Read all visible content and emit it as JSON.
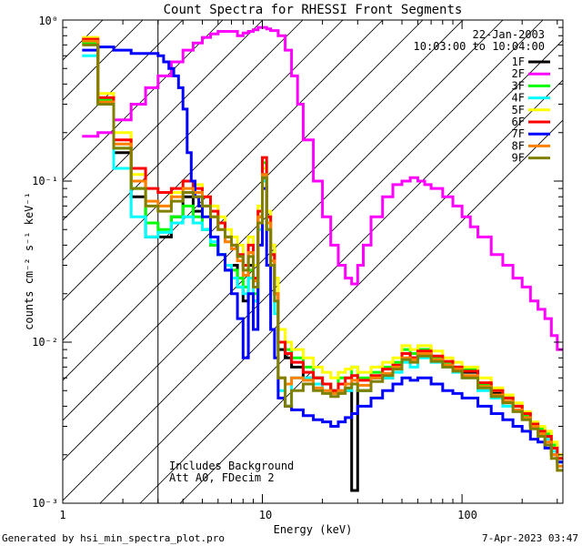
{
  "chart_data": {
    "type": "line",
    "title": "Count Spectra for RHESSI Front Segments",
    "xlabel": "Energy (keV)",
    "ylabel": "counts cm⁻² s⁻¹ keV⁻¹",
    "xscale": "log",
    "yscale": "log",
    "xlim": [
      1,
      320
    ],
    "ylim": [
      0.001,
      1.0
    ],
    "x_ticks": [
      "1",
      "10",
      "100"
    ],
    "y_ticks": [
      "10⁻³",
      "10⁻²",
      "10⁻¹",
      "10⁰"
    ],
    "legend_position": "top-right",
    "annotations": {
      "date": "22-Jan-2003",
      "time_range": "10:03:00 to 10:04:00",
      "background_note": "Includes Background",
      "attenuator_note": "Att A0, FDecim 2",
      "excluded_region": [
        1,
        3
      ],
      "footer_left": "Generated by hsi_min_spectra_plot.pro",
      "footer_right": "7-Apr-2023 03:47"
    },
    "series": [
      {
        "name": "1F",
        "color": "#000000",
        "x": [
          1.25,
          1.5,
          1.8,
          2.2,
          2.6,
          3.0,
          3.5,
          4,
          4.5,
          5,
          5.5,
          6,
          6.5,
          7,
          7.5,
          8,
          8.5,
          9,
          9.5,
          10,
          10.5,
          11,
          11.5,
          12,
          13,
          14,
          16,
          18,
          20,
          22,
          24,
          26,
          28,
          30,
          35,
          40,
          45,
          50,
          55,
          60,
          70,
          80,
          90,
          100,
          120,
          140,
          160,
          180,
          200,
          220,
          240,
          260,
          280,
          300
        ],
        "y": [
          0.75,
          0.3,
          0.15,
          0.08,
          0.045,
          0.045,
          0.06,
          0.08,
          0.065,
          0.05,
          0.04,
          0.035,
          0.028,
          0.03,
          0.022,
          0.018,
          0.03,
          0.018,
          0.06,
          0.11,
          0.06,
          0.04,
          0.02,
          0.009,
          0.008,
          0.007,
          0.006,
          0.006,
          0.0055,
          0.005,
          0.005,
          0.005,
          0.0012,
          0.005,
          0.006,
          0.006,
          0.007,
          0.0085,
          0.008,
          0.009,
          0.008,
          0.0075,
          0.007,
          0.0065,
          0.0055,
          0.0048,
          0.0045,
          0.004,
          0.0035,
          0.003,
          0.0028,
          0.0026,
          0.0022,
          0.002
        ]
      },
      {
        "name": "2F",
        "color": "#ff00ff",
        "x": [
          1.25,
          1.5,
          1.8,
          2.2,
          2.6,
          3.0,
          3.5,
          4,
          4.5,
          5,
          5.5,
          6,
          6.5,
          7,
          7.5,
          8,
          8.5,
          9,
          9.5,
          10,
          10.5,
          11,
          12,
          13,
          14,
          15,
          16,
          18,
          20,
          22,
          24,
          26,
          28,
          30,
          32,
          35,
          40,
          45,
          50,
          55,
          60,
          65,
          70,
          80,
          90,
          100,
          110,
          120,
          140,
          160,
          180,
          200,
          220,
          240,
          260,
          280,
          300
        ],
        "y": [
          0.19,
          0.2,
          0.24,
          0.3,
          0.38,
          0.45,
          0.55,
          0.65,
          0.72,
          0.78,
          0.82,
          0.85,
          0.85,
          0.85,
          0.8,
          0.83,
          0.85,
          0.87,
          0.9,
          0.9,
          0.88,
          0.86,
          0.8,
          0.65,
          0.45,
          0.3,
          0.18,
          0.1,
          0.06,
          0.04,
          0.03,
          0.025,
          0.023,
          0.03,
          0.04,
          0.06,
          0.08,
          0.095,
          0.1,
          0.105,
          0.1,
          0.095,
          0.09,
          0.08,
          0.07,
          0.06,
          0.052,
          0.045,
          0.035,
          0.03,
          0.025,
          0.022,
          0.018,
          0.016,
          0.014,
          0.011,
          0.009
        ]
      },
      {
        "name": "3F",
        "color": "#00ff00",
        "x": [
          1.25,
          1.5,
          1.8,
          2.2,
          2.6,
          3.0,
          3.5,
          4,
          4.5,
          5,
          5.5,
          6,
          6.5,
          7,
          7.5,
          8,
          8.5,
          9,
          9.5,
          10,
          10.5,
          11,
          11.5,
          12,
          13,
          14,
          16,
          18,
          20,
          22,
          24,
          26,
          28,
          30,
          35,
          40,
          45,
          50,
          55,
          60,
          70,
          80,
          90,
          100,
          120,
          140,
          160,
          180,
          200,
          220,
          240,
          260,
          280,
          300
        ],
        "y": [
          0.72,
          0.32,
          0.16,
          0.09,
          0.055,
          0.05,
          0.06,
          0.07,
          0.06,
          0.05,
          0.04,
          0.035,
          0.03,
          0.028,
          0.025,
          0.022,
          0.028,
          0.02,
          0.06,
          0.13,
          0.05,
          0.03,
          0.018,
          0.01,
          0.009,
          0.008,
          0.007,
          0.006,
          0.0055,
          0.005,
          0.006,
          0.006,
          0.007,
          0.006,
          0.0065,
          0.007,
          0.0075,
          0.009,
          0.0085,
          0.009,
          0.008,
          0.0075,
          0.007,
          0.0068,
          0.0055,
          0.005,
          0.0045,
          0.004,
          0.0035,
          0.003,
          0.0029,
          0.0027,
          0.0023,
          0.0019
        ]
      },
      {
        "name": "4F",
        "color": "#00ffff",
        "x": [
          1.25,
          1.5,
          1.8,
          2.2,
          2.6,
          3.0,
          3.5,
          4,
          4.5,
          5,
          5.5,
          6,
          6.5,
          7,
          7.5,
          8,
          8.5,
          9,
          9.5,
          10,
          10.5,
          11,
          11.5,
          12,
          13,
          14,
          16,
          18,
          20,
          22,
          24,
          26,
          28,
          30,
          35,
          40,
          45,
          50,
          55,
          60,
          70,
          80,
          90,
          100,
          120,
          140,
          160,
          180,
          200,
          220,
          240,
          260,
          280,
          300
        ],
        "y": [
          0.6,
          0.3,
          0.12,
          0.06,
          0.045,
          0.048,
          0.055,
          0.06,
          0.055,
          0.05,
          0.042,
          0.035,
          0.03,
          0.025,
          0.022,
          0.02,
          0.025,
          0.018,
          0.05,
          0.1,
          0.05,
          0.03,
          0.015,
          0.005,
          0.004,
          0.006,
          0.006,
          0.0055,
          0.005,
          0.0048,
          0.005,
          0.005,
          0.0055,
          0.005,
          0.006,
          0.006,
          0.0065,
          0.0075,
          0.007,
          0.008,
          0.0075,
          0.007,
          0.0065,
          0.006,
          0.005,
          0.0045,
          0.004,
          0.0038,
          0.0034,
          0.003,
          0.0028,
          0.0025,
          0.0021,
          0.0018
        ]
      },
      {
        "name": "5F",
        "color": "#ffff00",
        "x": [
          1.25,
          1.5,
          1.8,
          2.2,
          2.6,
          3.0,
          3.5,
          4,
          4.5,
          5,
          5.5,
          6,
          6.5,
          7,
          7.5,
          8,
          8.5,
          9,
          9.5,
          10,
          10.5,
          11,
          11.5,
          12,
          13,
          14,
          16,
          18,
          20,
          22,
          24,
          26,
          28,
          30,
          35,
          40,
          45,
          50,
          55,
          60,
          70,
          80,
          90,
          100,
          120,
          140,
          160,
          180,
          200,
          220,
          240,
          260,
          280,
          300
        ],
        "y": [
          0.78,
          0.35,
          0.2,
          0.11,
          0.07,
          0.07,
          0.085,
          0.1,
          0.095,
          0.08,
          0.07,
          0.06,
          0.05,
          0.045,
          0.04,
          0.03,
          0.045,
          0.03,
          0.07,
          0.12,
          0.065,
          0.04,
          0.025,
          0.012,
          0.01,
          0.009,
          0.008,
          0.007,
          0.0065,
          0.006,
          0.0065,
          0.0068,
          0.007,
          0.0065,
          0.007,
          0.0075,
          0.008,
          0.0095,
          0.009,
          0.0095,
          0.0088,
          0.008,
          0.0075,
          0.007,
          0.006,
          0.0052,
          0.0047,
          0.0042,
          0.0037,
          0.0032,
          0.003,
          0.0028,
          0.0024,
          0.002
        ]
      },
      {
        "name": "6F",
        "color": "#ff0000",
        "x": [
          1.25,
          1.5,
          1.8,
          2.2,
          2.6,
          3.0,
          3.5,
          4,
          4.5,
          5,
          5.5,
          6,
          6.5,
          7,
          7.5,
          8,
          8.5,
          9,
          9.5,
          10,
          10.5,
          11,
          11.5,
          12,
          13,
          14,
          16,
          18,
          20,
          22,
          24,
          26,
          28,
          30,
          35,
          40,
          45,
          50,
          55,
          60,
          70,
          80,
          90,
          100,
          120,
          140,
          160,
          180,
          200,
          220,
          240,
          260,
          280,
          300
        ],
        "y": [
          0.76,
          0.33,
          0.18,
          0.12,
          0.09,
          0.085,
          0.09,
          0.1,
          0.09,
          0.08,
          0.065,
          0.055,
          0.045,
          0.04,
          0.035,
          0.03,
          0.04,
          0.025,
          0.065,
          0.14,
          0.06,
          0.035,
          0.02,
          0.01,
          0.0085,
          0.0075,
          0.0065,
          0.006,
          0.0055,
          0.005,
          0.0055,
          0.006,
          0.0062,
          0.0058,
          0.0062,
          0.0068,
          0.0072,
          0.0085,
          0.008,
          0.0088,
          0.0082,
          0.0076,
          0.007,
          0.0066,
          0.0056,
          0.005,
          0.0045,
          0.004,
          0.0036,
          0.0031,
          0.0028,
          0.0026,
          0.0022,
          0.0019
        ]
      },
      {
        "name": "7F",
        "color": "#0000ff",
        "x": [
          1.25,
          1.5,
          1.8,
          2.2,
          2.6,
          3.0,
          3.2,
          3.4,
          3.6,
          3.8,
          4.0,
          4.2,
          4.4,
          4.6,
          4.8,
          5,
          5.5,
          6,
          6.5,
          7,
          7.5,
          8,
          8.5,
          9,
          9.5,
          10,
          10.5,
          11,
          11.5,
          12,
          13,
          14,
          16,
          18,
          20,
          22,
          24,
          26,
          28,
          30,
          35,
          40,
          45,
          50,
          55,
          60,
          70,
          80,
          90,
          100,
          120,
          140,
          160,
          180,
          200,
          220,
          240,
          260,
          280,
          300
        ],
        "y": [
          0.65,
          0.68,
          0.65,
          0.62,
          0.62,
          0.6,
          0.55,
          0.5,
          0.45,
          0.38,
          0.28,
          0.15,
          0.1,
          0.08,
          0.07,
          0.06,
          0.045,
          0.035,
          0.028,
          0.02,
          0.014,
          0.008,
          0.02,
          0.012,
          0.04,
          0.09,
          0.03,
          0.012,
          0.008,
          0.0045,
          0.004,
          0.0038,
          0.0035,
          0.0033,
          0.0032,
          0.003,
          0.0032,
          0.0034,
          0.0036,
          0.004,
          0.0045,
          0.005,
          0.0055,
          0.006,
          0.0058,
          0.006,
          0.0055,
          0.005,
          0.0048,
          0.0045,
          0.004,
          0.0036,
          0.0033,
          0.003,
          0.0028,
          0.0025,
          0.0024,
          0.0022,
          0.002,
          0.0018
        ]
      },
      {
        "name": "8F",
        "color": "#ff8000",
        "x": [
          1.25,
          1.5,
          1.8,
          2.2,
          2.6,
          3.0,
          3.5,
          4,
          4.5,
          5,
          5.5,
          6,
          6.5,
          7,
          7.5,
          8,
          8.5,
          9,
          9.5,
          10,
          10.5,
          11,
          11.5,
          12,
          13,
          14,
          16,
          18,
          20,
          22,
          24,
          26,
          28,
          30,
          35,
          40,
          45,
          50,
          55,
          60,
          70,
          80,
          90,
          100,
          120,
          140,
          160,
          180,
          200,
          220,
          240,
          260,
          280,
          300
        ],
        "y": [
          0.74,
          0.31,
          0.17,
          0.1,
          0.075,
          0.07,
          0.08,
          0.09,
          0.085,
          0.07,
          0.06,
          0.05,
          0.042,
          0.038,
          0.032,
          0.026,
          0.036,
          0.024,
          0.06,
          0.11,
          0.055,
          0.032,
          0.02,
          0.006,
          0.0055,
          0.006,
          0.0058,
          0.0052,
          0.005,
          0.0048,
          0.005,
          0.0055,
          0.0058,
          0.0054,
          0.006,
          0.0064,
          0.007,
          0.008,
          0.0078,
          0.0085,
          0.0078,
          0.0072,
          0.0068,
          0.0062,
          0.0053,
          0.0047,
          0.0043,
          0.0038,
          0.0034,
          0.003,
          0.0027,
          0.0024,
          0.002,
          0.0017
        ]
      },
      {
        "name": "9F",
        "color": "#808000",
        "x": [
          1.25,
          1.5,
          1.8,
          2.2,
          2.6,
          3.0,
          3.5,
          4,
          4.5,
          5,
          5.5,
          6,
          6.5,
          7,
          7.5,
          8,
          8.5,
          9,
          9.5,
          10,
          10.5,
          11,
          11.5,
          12,
          13,
          14,
          16,
          18,
          20,
          22,
          24,
          26,
          28,
          30,
          35,
          40,
          45,
          50,
          55,
          60,
          70,
          80,
          90,
          100,
          120,
          140,
          160,
          180,
          200,
          220,
          240,
          260,
          280,
          300
        ],
        "y": [
          0.7,
          0.3,
          0.16,
          0.09,
          0.07,
          0.065,
          0.075,
          0.085,
          0.08,
          0.07,
          0.06,
          0.05,
          0.045,
          0.04,
          0.034,
          0.028,
          0.034,
          0.022,
          0.055,
          0.105,
          0.05,
          0.03,
          0.018,
          0.006,
          0.004,
          0.005,
          0.0055,
          0.005,
          0.0048,
          0.0046,
          0.0048,
          0.0052,
          0.0055,
          0.005,
          0.0057,
          0.0062,
          0.0068,
          0.0078,
          0.0075,
          0.0082,
          0.0076,
          0.007,
          0.0066,
          0.006,
          0.0052,
          0.0046,
          0.0042,
          0.0037,
          0.0033,
          0.0029,
          0.0026,
          0.0023,
          0.0019,
          0.0016
        ]
      }
    ]
  }
}
